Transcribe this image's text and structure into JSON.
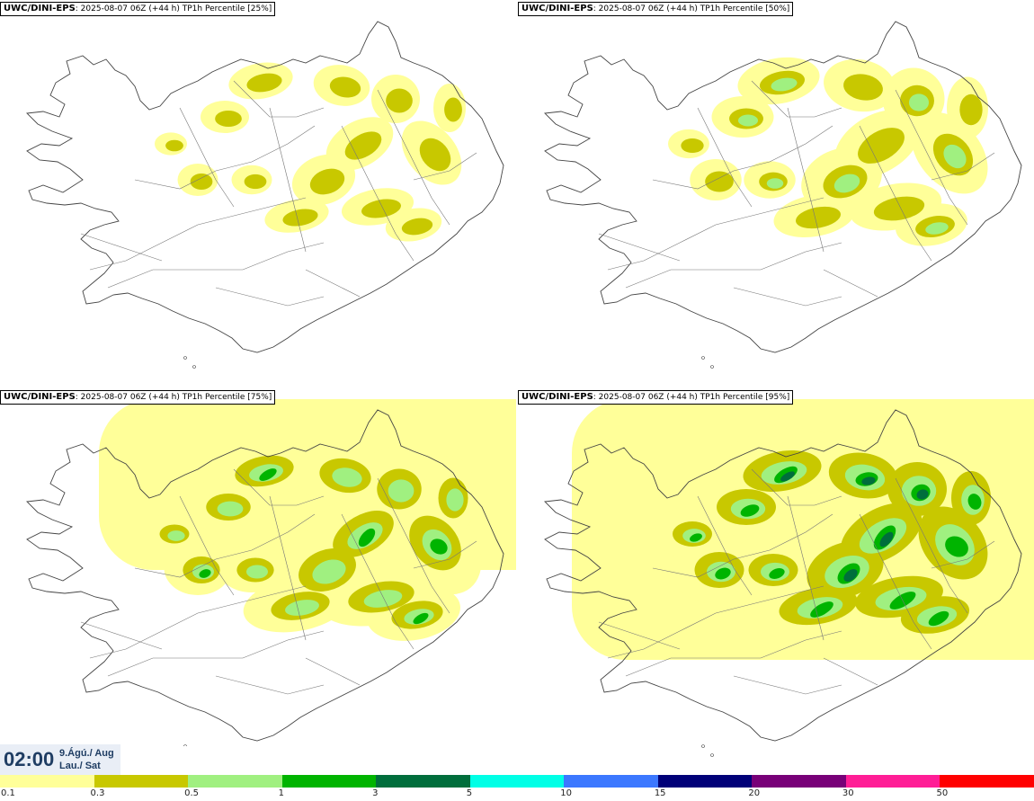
{
  "panels": [
    {
      "source": "UWC/DINI-EPS",
      "run": "2025-08-07 06Z (+44 h) TP1h Percentile",
      "percentile": "[25%]",
      "intensity": 1
    },
    {
      "source": "UWC/DINI-EPS",
      "run": "2025-08-07 06Z (+44 h) TP1h Percentile",
      "percentile": "[50%]",
      "intensity": 2
    },
    {
      "source": "UWC/DINI-EPS",
      "run": "2025-08-07 06Z (+44 h) TP1h Percentile",
      "percentile": "[75%]",
      "intensity": 3
    },
    {
      "source": "UWC/DINI-EPS",
      "run": "2025-08-07 06Z (+44 h) TP1h Percentile",
      "percentile": "[95%]",
      "intensity": 4
    }
  ],
  "valid_time": {
    "time": "02:00",
    "date_line1": "9.Ágú./ Aug",
    "date_line2": "Lau./ Sat"
  },
  "legend": {
    "colors": [
      "#ffff99",
      "#c8c800",
      "#a0f080",
      "#00b400",
      "#006e3c",
      "#00ffe6",
      "#3c78ff",
      "#000078",
      "#780078",
      "#ff1e96",
      "#ff0000"
    ],
    "labels": [
      "0.1",
      "0.3",
      "0.5",
      "1",
      "3",
      "5",
      "10",
      "15",
      "20",
      "30",
      "50"
    ]
  }
}
